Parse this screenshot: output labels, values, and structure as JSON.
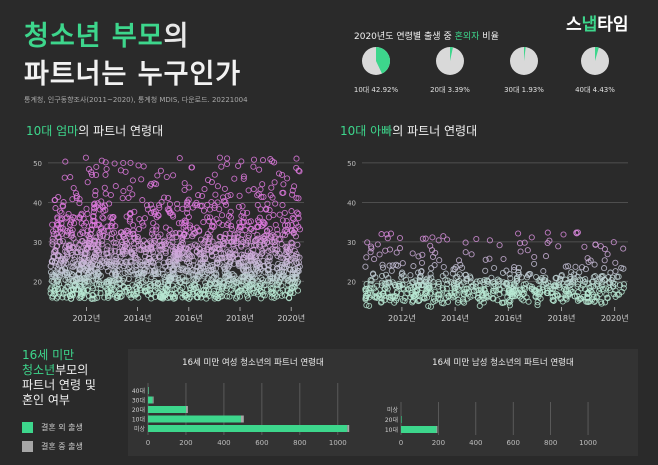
{
  "header": {
    "title_line1_a": "청소년 부모",
    "title_line1_b": "의",
    "title_line2": "파트너는 누구인가",
    "source": "통계청, 인구동향조사(2011~2020), 통계청 MDIS, 다운로드. 20221004",
    "logo_a": "스",
    "logo_b": "냅",
    "logo_c": "타임"
  },
  "ratio_section": {
    "title_a": "2020년도 연령별 출생 중 ",
    "title_b": "혼외자",
    "title_c": " 비율"
  },
  "mom_section": {
    "title_a": "10대 엄마",
    "title_b": "의 파트너 연령대"
  },
  "dad_section": {
    "title_a": "10대 아빠",
    "title_b": "의 파트너 연령대"
  },
  "bottom_section": {
    "title_a": "16세 미만",
    "title_b": "청소년",
    "title_c": "부모의",
    "title_d": "파트너 연령 및",
    "title_e": "혼인 여부",
    "legend": [
      {
        "label": "결혼 외 출생",
        "color": "#3dd68c"
      },
      {
        "label": "결혼 중 출생",
        "color": "#a6a6a6"
      }
    ]
  },
  "chart_data": [
    {
      "type": "pie",
      "title": "2020년도 연령별 출생 중 혼외자 비율",
      "categories": [
        "10대",
        "20대",
        "30대",
        "40대"
      ],
      "labels": [
        "10대 42.92%",
        "20대 3.39%",
        "30대 1.93%",
        "40대 4.43%"
      ],
      "values": [
        42.92,
        3.39,
        1.93,
        4.43
      ],
      "colors": {
        "highlight": "#3dd68c",
        "rest": "#d9d9d9"
      }
    },
    {
      "type": "scatter",
      "title": "10대 엄마의 파트너 연령대",
      "x_ticks": [
        "2012년",
        "2014년",
        "2016년",
        "2018년",
        "2020년"
      ],
      "xlim": [
        2011,
        2021
      ],
      "ylim": [
        14,
        52
      ],
      "y_ticks": [
        20,
        30,
        40,
        50
      ],
      "grid": true,
      "point_color_low": "#b7e8d2",
      "point_color_high": "#e07ae0",
      "density_by_age": [
        {
          "age": 16,
          "level": 10
        },
        {
          "age": 17,
          "level": 10
        },
        {
          "age": 18,
          "level": 10
        },
        {
          "age": 19,
          "level": 10
        },
        {
          "age": 20,
          "level": 10
        },
        {
          "age": 21,
          "level": 10
        },
        {
          "age": 22,
          "level": 10
        },
        {
          "age": 23,
          "level": 10
        },
        {
          "age": 24,
          "level": 10
        },
        {
          "age": 25,
          "level": 10
        },
        {
          "age": 26,
          "level": 10
        },
        {
          "age": 27,
          "level": 9
        },
        {
          "age": 28,
          "level": 9
        },
        {
          "age": 29,
          "level": 8
        },
        {
          "age": 30,
          "level": 7
        },
        {
          "age": 31,
          "level": 6
        },
        {
          "age": 32,
          "level": 6
        },
        {
          "age": 33,
          "level": 5
        },
        {
          "age": 34,
          "level": 5
        },
        {
          "age": 35,
          "level": 4
        },
        {
          "age": 36,
          "level": 4
        },
        {
          "age": 37,
          "level": 3
        },
        {
          "age": 38,
          "level": 3
        },
        {
          "age": 39,
          "level": 3
        },
        {
          "age": 40,
          "level": 2
        },
        {
          "age": 41,
          "level": 2
        },
        {
          "age": 42,
          "level": 2
        },
        {
          "age": 43,
          "level": 1
        },
        {
          "age": 44,
          "level": 1
        },
        {
          "age": 45,
          "level": 1
        },
        {
          "age": 46,
          "level": 1
        },
        {
          "age": 47,
          "level": 1
        },
        {
          "age": 48,
          "level": 1
        },
        {
          "age": 49,
          "level": 1
        },
        {
          "age": 50,
          "level": 1
        },
        {
          "age": 51,
          "level": 1
        }
      ]
    },
    {
      "type": "scatter",
      "title": "10대 아빠의 파트너 연령대",
      "x_ticks": [
        "2012년",
        "2014년",
        "2016년",
        "2018년",
        "2020년"
      ],
      "xlim": [
        2011,
        2021
      ],
      "ylim": [
        14,
        52
      ],
      "y_ticks": [
        20,
        30,
        40,
        50
      ],
      "grid": true,
      "point_color_low": "#b7e8d2",
      "point_color_high": "#e07ae0",
      "density_by_age": [
        {
          "age": 14,
          "level": 1
        },
        {
          "age": 15,
          "level": 6
        },
        {
          "age": 16,
          "level": 10
        },
        {
          "age": 17,
          "level": 10
        },
        {
          "age": 18,
          "level": 10
        },
        {
          "age": 19,
          "level": 10
        },
        {
          "age": 20,
          "level": 8
        },
        {
          "age": 21,
          "level": 5
        },
        {
          "age": 22,
          "level": 3
        },
        {
          "age": 23,
          "level": 2
        },
        {
          "age": 24,
          "level": 2
        },
        {
          "age": 25,
          "level": 1
        },
        {
          "age": 26,
          "level": 1
        },
        {
          "age": 27,
          "level": 1
        },
        {
          "age": 28,
          "level": 1
        },
        {
          "age": 29,
          "level": 1
        },
        {
          "age": 30,
          "level": 1
        },
        {
          "age": 31,
          "level": 1
        },
        {
          "age": 32,
          "level": 1
        }
      ]
    },
    {
      "type": "bar",
      "orientation": "horizontal",
      "title": "16세 미만 여성 청소년의 파트너 연령대",
      "categories": [
        "40대",
        "30대",
        "20대",
        "10대",
        "미상"
      ],
      "series": [
        {
          "name": "결혼 외 출생",
          "values": [
            3,
            25,
            200,
            490,
            1050
          ]
        },
        {
          "name": "결혼 중 출생",
          "values": [
            1,
            5,
            10,
            15,
            10
          ]
        }
      ],
      "x_ticks": [
        0,
        200,
        400,
        600,
        800,
        1000
      ],
      "xlim": [
        0,
        1080
      ]
    },
    {
      "type": "bar",
      "orientation": "horizontal",
      "title": "16세 미만 남성 청소년의 파트너 연령대",
      "categories": [
        "미상",
        "20대",
        "10대"
      ],
      "series": [
        {
          "name": "결혼 외 출생",
          "values": [
            0,
            3,
            190
          ]
        },
        {
          "name": "결혼 중 출생",
          "values": [
            0,
            0,
            5
          ]
        }
      ],
      "x_ticks": [
        0,
        200,
        400,
        600,
        800,
        1000
      ],
      "xlim": [
        0,
        1080
      ]
    }
  ]
}
